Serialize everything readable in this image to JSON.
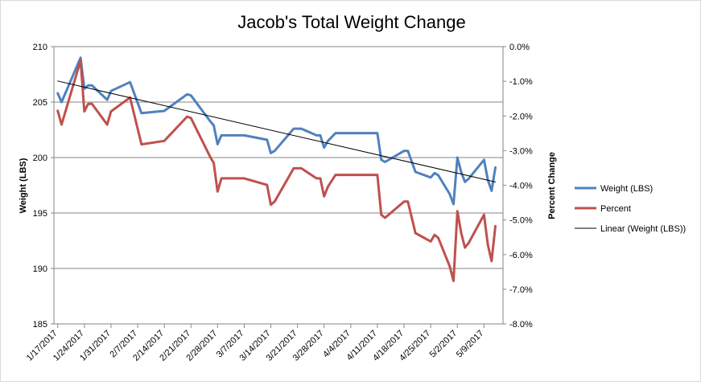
{
  "chart_data": {
    "type": "line",
    "title": "Jacob's Total Weight Change",
    "ylabel": "Weight (LBS)",
    "y2label": "Percent Change",
    "ylim": [
      185,
      210
    ],
    "yticks": [
      185,
      190,
      195,
      200,
      205,
      210
    ],
    "y2lim": [
      -0.08,
      0.0
    ],
    "y2ticks": [
      "0.0%",
      "-1.0%",
      "-2.0%",
      "-3.0%",
      "-4.0%",
      "-5.0%",
      "-6.0%",
      "-7.0%",
      "-8.0%"
    ],
    "x_ticks": [
      "1/17/2017",
      "1/24/2017",
      "1/31/2017",
      "2/7/2017",
      "2/14/2017",
      "2/21/2017",
      "2/28/2017",
      "3/7/2017",
      "3/14/2017",
      "3/21/2017",
      "3/28/2017",
      "4/4/2017",
      "4/11/2017",
      "4/18/2017",
      "4/25/2017",
      "5/2/2017",
      "5/9/2017"
    ],
    "xlim": [
      "1/16/2017",
      "5/14/2017"
    ],
    "grid": "horizontal",
    "legend_position": "right",
    "series": [
      {
        "name": "Weight (LBS)",
        "axis": "left",
        "color": "#4f81bd",
        "points": [
          [
            "1/17/2017",
            205.8
          ],
          [
            "1/18/2017",
            205.0
          ],
          [
            "1/23/2017",
            209.0
          ],
          [
            "1/24/2017",
            206.2
          ],
          [
            "1/25/2017",
            206.5
          ],
          [
            "1/26/2017",
            206.5
          ],
          [
            "1/30/2017",
            205.2
          ],
          [
            "1/31/2017",
            206.0
          ],
          [
            "2/5/2017",
            206.8
          ],
          [
            "2/8/2017",
            204.0
          ],
          [
            "2/14/2017",
            204.2
          ],
          [
            "2/20/2017",
            205.7
          ],
          [
            "2/21/2017",
            205.6
          ],
          [
            "2/26/2017",
            203.3
          ],
          [
            "2/27/2017",
            202.9
          ],
          [
            "2/28/2017",
            201.2
          ],
          [
            "3/1/2017",
            202.0
          ],
          [
            "3/7/2017",
            202.0
          ],
          [
            "3/13/2017",
            201.6
          ],
          [
            "3/14/2017",
            200.4
          ],
          [
            "3/15/2017",
            200.6
          ],
          [
            "3/20/2017",
            202.6
          ],
          [
            "3/22/2017",
            202.6
          ],
          [
            "3/26/2017",
            202.0
          ],
          [
            "3/27/2017",
            202.0
          ],
          [
            "3/28/2017",
            200.9
          ],
          [
            "3/29/2017",
            201.5
          ],
          [
            "3/31/2017",
            202.2
          ],
          [
            "4/11/2017",
            202.2
          ],
          [
            "4/12/2017",
            199.8
          ],
          [
            "4/13/2017",
            199.6
          ],
          [
            "4/18/2017",
            200.6
          ],
          [
            "4/19/2017",
            200.6
          ],
          [
            "4/21/2017",
            198.7
          ],
          [
            "4/25/2017",
            198.2
          ],
          [
            "4/26/2017",
            198.6
          ],
          [
            "4/27/2017",
            198.4
          ],
          [
            "4/30/2017",
            196.7
          ],
          [
            "5/1/2017",
            195.8
          ],
          [
            "5/2/2017",
            200.0
          ],
          [
            "5/3/2017",
            198.7
          ],
          [
            "5/4/2017",
            197.8
          ],
          [
            "5/5/2017",
            198.1
          ],
          [
            "5/9/2017",
            199.8
          ],
          [
            "5/10/2017",
            198.0
          ],
          [
            "5/11/2017",
            197.0
          ],
          [
            "5/12/2017",
            199.1
          ]
        ]
      },
      {
        "name": "Percent",
        "axis": "right",
        "color": "#c0504d",
        "points": [
          [
            "1/17/2017",
            -0.0185
          ],
          [
            "1/18/2017",
            -0.0225
          ],
          [
            "1/23/2017",
            -0.004
          ],
          [
            "1/24/2017",
            -0.0187
          ],
          [
            "1/25/2017",
            -0.0165
          ],
          [
            "1/26/2017",
            -0.0165
          ],
          [
            "1/30/2017",
            -0.0225
          ],
          [
            "1/31/2017",
            -0.0187
          ],
          [
            "2/5/2017",
            -0.0147
          ],
          [
            "2/8/2017",
            -0.0282
          ],
          [
            "2/14/2017",
            -0.0272
          ],
          [
            "2/20/2017",
            -0.0202
          ],
          [
            "2/21/2017",
            -0.0206
          ],
          [
            "2/26/2017",
            -0.0317
          ],
          [
            "2/27/2017",
            -0.0336
          ],
          [
            "2/28/2017",
            -0.0418
          ],
          [
            "3/1/2017",
            -0.038
          ],
          [
            "3/7/2017",
            -0.038
          ],
          [
            "3/13/2017",
            -0.0399
          ],
          [
            "3/14/2017",
            -0.0456
          ],
          [
            "3/15/2017",
            -0.0447
          ],
          [
            "3/20/2017",
            -0.0351
          ],
          [
            "3/22/2017",
            -0.0351
          ],
          [
            "3/26/2017",
            -0.038
          ],
          [
            "3/27/2017",
            -0.038
          ],
          [
            "3/28/2017",
            -0.0432
          ],
          [
            "3/29/2017",
            -0.0404
          ],
          [
            "3/31/2017",
            -0.037
          ],
          [
            "4/11/2017",
            -0.037
          ],
          [
            "4/12/2017",
            -0.0485
          ],
          [
            "4/13/2017",
            -0.0494
          ],
          [
            "4/18/2017",
            -0.0447
          ],
          [
            "4/19/2017",
            -0.0447
          ],
          [
            "4/21/2017",
            -0.0538
          ],
          [
            "4/25/2017",
            -0.0562
          ],
          [
            "4/26/2017",
            -0.0543
          ],
          [
            "4/27/2017",
            -0.0552
          ],
          [
            "4/30/2017",
            -0.0634
          ],
          [
            "5/1/2017",
            -0.0676
          ],
          [
            "5/2/2017",
            -0.0475
          ],
          [
            "5/3/2017",
            -0.0537
          ],
          [
            "5/4/2017",
            -0.058
          ],
          [
            "5/5/2017",
            -0.0566
          ],
          [
            "5/9/2017",
            -0.0485
          ],
          [
            "5/10/2017",
            -0.0571
          ],
          [
            "5/11/2017",
            -0.0619
          ],
          [
            "5/12/2017",
            -0.0518
          ]
        ]
      },
      {
        "name": "Linear (Weight (LBS))",
        "axis": "left",
        "color": "#000000",
        "kind": "trendline",
        "points": [
          [
            "1/17/2017",
            206.9
          ],
          [
            "5/12/2017",
            197.8
          ]
        ]
      }
    ]
  }
}
